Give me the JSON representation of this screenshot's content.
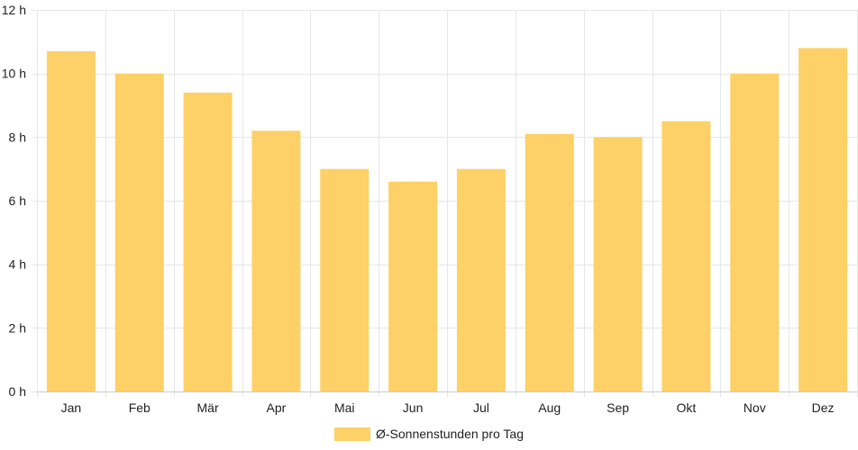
{
  "chart_data": {
    "type": "bar",
    "categories": [
      "Jan",
      "Feb",
      "Mär",
      "Apr",
      "Mai",
      "Jun",
      "Jul",
      "Aug",
      "Sep",
      "Okt",
      "Nov",
      "Dez"
    ],
    "series": [
      {
        "name": "Ø-Sonnenstunden pro Tag",
        "values": [
          10.7,
          10.0,
          9.4,
          8.2,
          7.0,
          6.6,
          7.0,
          8.1,
          8.0,
          8.5,
          10.0,
          10.8
        ]
      }
    ],
    "y_ticks": [
      "0 h",
      "2 h",
      "4 h",
      "6 h",
      "8 h",
      "10 h",
      "12 h"
    ],
    "y_tick_values": [
      0,
      2,
      4,
      6,
      8,
      10,
      12
    ],
    "ylim": [
      0,
      12
    ],
    "grid": true,
    "legend_position": "bottom",
    "bar_color": "#fdd167",
    "grid_color": "#e6e6e6"
  }
}
